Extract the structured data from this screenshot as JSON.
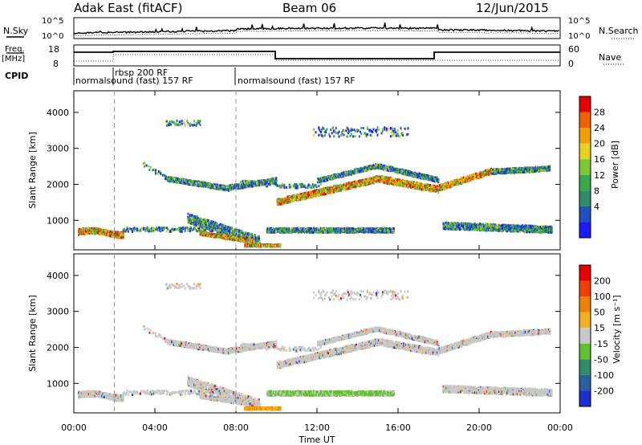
{
  "header": {
    "station": "Adak East (fitACF)",
    "beam": "Beam 06",
    "date": "12/Jun/2015"
  },
  "summary_labels": {
    "nsky": "N.Sky",
    "nsearch": "N.Search",
    "freq_top": "Freq.",
    "freq_unit": "[MHz]",
    "nave": "Nave",
    "cpid": "CPID",
    "nsky_ticks": [
      "10^5",
      "10^0"
    ],
    "nsearch_ticks": [
      "10^5",
      "10^0"
    ],
    "freq_ticks": [
      "18",
      "8"
    ],
    "nave_ticks": [
      "60",
      "0"
    ]
  },
  "cpid_segments": [
    {
      "label": "normalsound (fast) 157 RF"
    },
    {
      "label": "rbsp 200 RF"
    },
    {
      "label": "normalsound (fast) 157 RF"
    }
  ],
  "chart_data": [
    {
      "type": "heatmap",
      "name": "Power",
      "ylabel": "Slant Range [km]",
      "xlabel": "Time UT",
      "x_ticks": [
        "00:00",
        "04:00",
        "08:00",
        "12:00",
        "16:00",
        "20:00",
        "00:00"
      ],
      "x_range_hours": [
        0,
        24
      ],
      "y_ticks": [
        1000,
        2000,
        3000,
        4000
      ],
      "y_range_km": [
        180,
        4600
      ],
      "colorbar": {
        "label": "Power [dB]",
        "ticks": [
          4,
          8,
          12,
          16,
          20,
          24,
          28
        ],
        "colors": [
          "#1a1aff",
          "#2050c0",
          "#2f8c6a",
          "#38a84a",
          "#7cc832",
          "#e8d020",
          "#f0a000",
          "#f06000",
          "#e80000"
        ]
      },
      "event_lines_hours": [
        2,
        8
      ]
    },
    {
      "type": "heatmap",
      "name": "Velocity",
      "ylabel": "Slant Range [km]",
      "xlabel": "Time UT",
      "x_ticks": [
        "00:00",
        "04:00",
        "08:00",
        "12:00",
        "16:00",
        "20:00",
        "00:00"
      ],
      "x_range_hours": [
        0,
        24
      ],
      "y_ticks": [
        1000,
        2000,
        3000,
        4000
      ],
      "y_range_km": [
        180,
        4600
      ],
      "colorbar": {
        "label": "Velocity [m s⁻¹]",
        "ticks": [
          "200",
          "100",
          "50",
          "15",
          "-15",
          "-50",
          "-100",
          "-200"
        ],
        "colors": [
          "#1a30d0",
          "#2a60a0",
          "#2f8c6a",
          "#60c030",
          "#c8c8c8",
          "#f0b020",
          "#f08000",
          "#f04000",
          "#e80000"
        ]
      },
      "event_lines_hours": [
        2,
        8
      ]
    }
  ]
}
